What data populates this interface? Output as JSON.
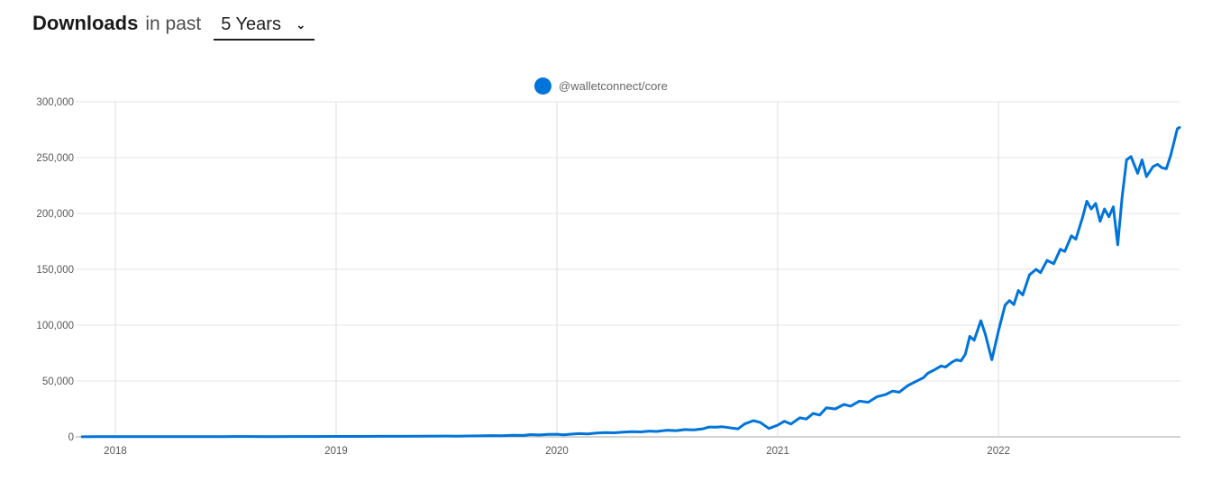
{
  "header": {
    "title": "Downloads",
    "subtitle": "in past",
    "range_select": {
      "value": "5 Years"
    }
  },
  "legend": [
    {
      "label": "@walletconnect/core",
      "color": "#0074D9"
    }
  ],
  "colors": {
    "line": "#0074D9",
    "grid_horizontal": "#e6e6e6",
    "grid_vertical": "#dcdcdc",
    "axis": "#a6a6a6",
    "tick_text": "#595959"
  },
  "chart_data": {
    "type": "line",
    "title": "Downloads in past 5 Years",
    "xlabel": "",
    "ylabel": "",
    "legend_position": "top-center",
    "grid": true,
    "x_axis": {
      "range": [
        2017.845,
        2022.824
      ],
      "ticks": [
        2018,
        2019,
        2020,
        2021,
        2022
      ],
      "labels": [
        "2018",
        "2019",
        "2020",
        "2021",
        "2022"
      ]
    },
    "y_axis": {
      "range": [
        0,
        300000
      ],
      "ticks": [
        0,
        50000,
        100000,
        150000,
        200000,
        250000,
        300000
      ],
      "labels": [
        "0",
        "50,000",
        "100,000",
        "150,000",
        "200,000",
        "250,000",
        "300,000"
      ]
    },
    "series": [
      {
        "name": "@walletconnect/core",
        "color": "#0074D9",
        "points": [
          [
            2017.85,
            100
          ],
          [
            2017.92,
            150
          ],
          [
            2018.0,
            200
          ],
          [
            2018.1,
            180
          ],
          [
            2018.2,
            220
          ],
          [
            2018.3,
            250
          ],
          [
            2018.4,
            230
          ],
          [
            2018.5,
            280
          ],
          [
            2018.6,
            300
          ],
          [
            2018.7,
            280
          ],
          [
            2018.8,
            320
          ],
          [
            2018.9,
            350
          ],
          [
            2019.0,
            400
          ],
          [
            2019.1,
            380
          ],
          [
            2019.2,
            450
          ],
          [
            2019.3,
            500
          ],
          [
            2019.4,
            600
          ],
          [
            2019.5,
            700
          ],
          [
            2019.55,
            650
          ],
          [
            2019.6,
            800
          ],
          [
            2019.65,
            900
          ],
          [
            2019.7,
            1100
          ],
          [
            2019.75,
            1000
          ],
          [
            2019.8,
            1400
          ],
          [
            2019.85,
            1300
          ],
          [
            2019.88,
            2000
          ],
          [
            2019.92,
            1700
          ],
          [
            2019.96,
            2200
          ],
          [
            2020.0,
            2300
          ],
          [
            2020.03,
            1800
          ],
          [
            2020.07,
            2500
          ],
          [
            2020.1,
            2900
          ],
          [
            2020.14,
            2700
          ],
          [
            2020.18,
            3400
          ],
          [
            2020.22,
            3800
          ],
          [
            2020.26,
            3600
          ],
          [
            2020.3,
            4300
          ],
          [
            2020.34,
            4600
          ],
          [
            2020.38,
            4400
          ],
          [
            2020.42,
            5200
          ],
          [
            2020.45,
            4800
          ],
          [
            2020.5,
            6000
          ],
          [
            2020.54,
            5600
          ],
          [
            2020.58,
            6500
          ],
          [
            2020.62,
            6200
          ],
          [
            2020.66,
            7200
          ],
          [
            2020.69,
            8800
          ],
          [
            2020.72,
            8600
          ],
          [
            2020.75,
            9000
          ],
          [
            2020.78,
            8200
          ],
          [
            2020.82,
            7200
          ],
          [
            2020.85,
            11500
          ],
          [
            2020.89,
            14500
          ],
          [
            2020.92,
            13000
          ],
          [
            2020.96,
            7500
          ],
          [
            2021.0,
            10500
          ],
          [
            2021.03,
            14000
          ],
          [
            2021.06,
            11500
          ],
          [
            2021.1,
            17000
          ],
          [
            2021.13,
            16000
          ],
          [
            2021.16,
            21000
          ],
          [
            2021.19,
            19500
          ],
          [
            2021.22,
            26000
          ],
          [
            2021.26,
            25000
          ],
          [
            2021.3,
            29000
          ],
          [
            2021.33,
            27500
          ],
          [
            2021.37,
            32000
          ],
          [
            2021.41,
            31000
          ],
          [
            2021.45,
            36000
          ],
          [
            2021.49,
            38000
          ],
          [
            2021.52,
            41000
          ],
          [
            2021.55,
            40000
          ],
          [
            2021.59,
            46000
          ],
          [
            2021.63,
            50000
          ],
          [
            2021.66,
            53000
          ],
          [
            2021.68,
            57000
          ],
          [
            2021.71,
            60000
          ],
          [
            2021.74,
            63500
          ],
          [
            2021.76,
            62500
          ],
          [
            2021.79,
            67000
          ],
          [
            2021.81,
            69000
          ],
          [
            2021.83,
            68000
          ],
          [
            2021.85,
            74000
          ],
          [
            2021.87,
            90000
          ],
          [
            2021.89,
            86500
          ],
          [
            2021.92,
            104000
          ],
          [
            2021.94,
            92000
          ],
          [
            2021.97,
            69000
          ],
          [
            2022.0,
            95000
          ],
          [
            2022.03,
            118000
          ],
          [
            2022.05,
            122000
          ],
          [
            2022.07,
            118500
          ],
          [
            2022.09,
            131000
          ],
          [
            2022.11,
            127000
          ],
          [
            2022.14,
            145000
          ],
          [
            2022.17,
            150000
          ],
          [
            2022.19,
            147000
          ],
          [
            2022.22,
            158000
          ],
          [
            2022.25,
            155000
          ],
          [
            2022.28,
            168000
          ],
          [
            2022.3,
            166000
          ],
          [
            2022.33,
            180000
          ],
          [
            2022.35,
            177000
          ],
          [
            2022.38,
            196000
          ],
          [
            2022.4,
            211000
          ],
          [
            2022.42,
            204000
          ],
          [
            2022.44,
            209000
          ],
          [
            2022.46,
            193000
          ],
          [
            2022.48,
            204000
          ],
          [
            2022.5,
            197000
          ],
          [
            2022.52,
            206000
          ],
          [
            2022.54,
            172000
          ],
          [
            2022.56,
            215000
          ],
          [
            2022.58,
            248000
          ],
          [
            2022.6,
            251000
          ],
          [
            2022.63,
            236000
          ],
          [
            2022.65,
            248000
          ],
          [
            2022.67,
            233000
          ],
          [
            2022.7,
            242000
          ],
          [
            2022.72,
            244000
          ],
          [
            2022.74,
            241000
          ],
          [
            2022.76,
            240000
          ],
          [
            2022.78,
            252000
          ],
          [
            2022.8,
            268000
          ],
          [
            2022.81,
            276000
          ],
          [
            2022.82,
            277000
          ]
        ]
      }
    ]
  }
}
